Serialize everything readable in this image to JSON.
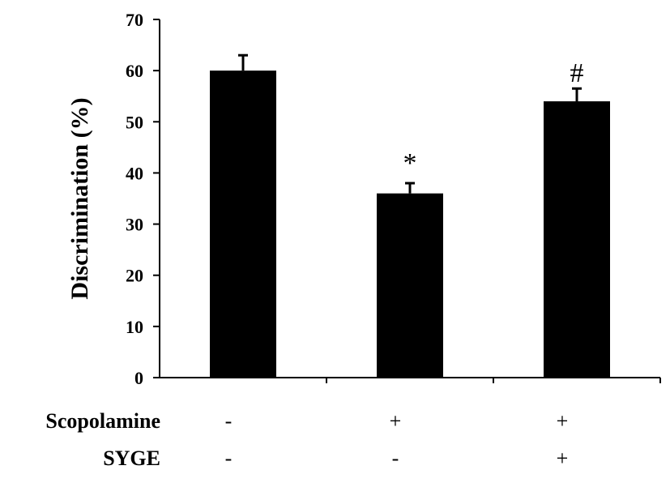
{
  "chart_data": {
    "type": "bar",
    "categories": [
      "1",
      "2",
      "3"
    ],
    "values": [
      60,
      36,
      54
    ],
    "errors": [
      3,
      2,
      2.5
    ],
    "significance": [
      "",
      "*",
      "#"
    ],
    "ylabel": "Discrimination (%)",
    "ylim": [
      0,
      70
    ],
    "yticks": [
      0,
      10,
      20,
      30,
      40,
      50,
      60,
      70
    ],
    "grid": false,
    "bar_color": "#000000",
    "conditions": [
      {
        "label": "Scopolamine",
        "values": [
          "-",
          "+",
          "+"
        ]
      },
      {
        "label": "SYGE",
        "values": [
          "-",
          "-",
          "+"
        ]
      }
    ]
  }
}
